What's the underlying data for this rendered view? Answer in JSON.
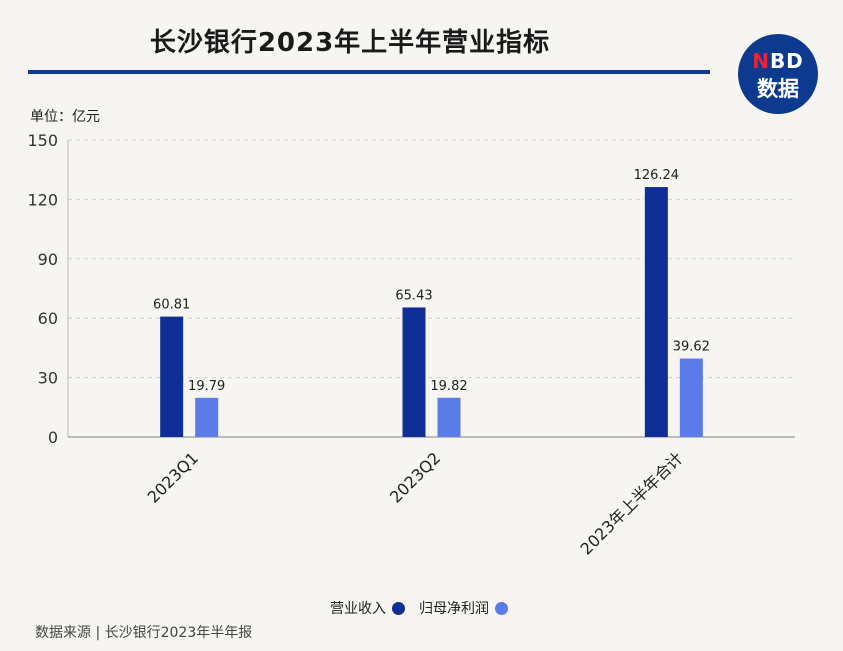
{
  "header": {
    "title": "长沙银行2023年上半年营业指标",
    "logo_top": "NBD",
    "logo_bottom": "数据"
  },
  "unit_label": "单位：亿元",
  "legend": {
    "items": [
      {
        "label": "营业收入",
        "color": "#0f2f96"
      },
      {
        "label": "归母净利润",
        "color": "#5b7be8"
      }
    ]
  },
  "source": "数据来源 | 长沙银行2023年半年报",
  "chart_data": {
    "type": "bar",
    "categories": [
      "2023Q1",
      "2023Q2",
      "2023年上半年合计"
    ],
    "series": [
      {
        "name": "营业收入",
        "values": [
          60.81,
          65.43,
          126.24
        ],
        "labels": [
          "60.81",
          "65.43",
          "126.24"
        ],
        "color": "#0f2f96"
      },
      {
        "name": "归母净利润",
        "values": [
          19.79,
          19.82,
          39.62
        ],
        "labels": [
          "19.79",
          "19.82",
          "39.62"
        ],
        "color": "#5b7be8"
      }
    ],
    "yticks": [
      0,
      30,
      60,
      90,
      120,
      150
    ],
    "ylim": [
      0,
      150
    ],
    "grid": true,
    "legend_position": "bottom"
  }
}
